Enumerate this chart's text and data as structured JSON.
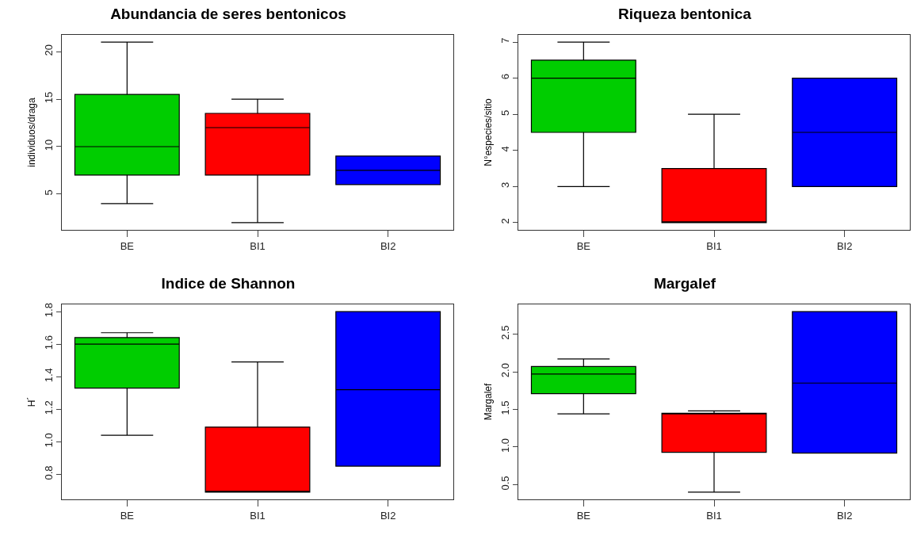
{
  "chart_data": [
    {
      "type": "box",
      "title": "Abundancia de seres bentonicos",
      "ylabel": "individuos/draga",
      "categories": [
        "BE",
        "BI1",
        "BI2"
      ],
      "colors": [
        "#00cd00",
        "#ff0000",
        "#0000ff"
      ],
      "ylim": [
        1.24,
        21.76
      ],
      "yticks": [
        5,
        10,
        15,
        20
      ],
      "boxes": [
        {
          "low": 4,
          "q1": 7,
          "median": 10,
          "q3": 15.5,
          "high": 21
        },
        {
          "low": 2,
          "q1": 7,
          "median": 12,
          "q3": 13.5,
          "high": 15
        },
        {
          "low": 6,
          "q1": 6,
          "median": 7.5,
          "q3": 9,
          "high": 9
        }
      ]
    },
    {
      "type": "box",
      "title": "Riqueza bentonica",
      "ylabel": "N°especies/sitio",
      "categories": [
        "BE",
        "BI1",
        "BI2"
      ],
      "colors": [
        "#00cd00",
        "#ff0000",
        "#0000ff"
      ],
      "ylim": [
        1.8,
        7.2
      ],
      "yticks": [
        2,
        3,
        4,
        5,
        6,
        7
      ],
      "boxes": [
        {
          "low": 3,
          "q1": 4.5,
          "median": 6,
          "q3": 6.5,
          "high": 7
        },
        {
          "low": 2,
          "q1": 2,
          "median": 2,
          "q3": 3.5,
          "high": 5
        },
        {
          "low": 3,
          "q1": 3,
          "median": 4.5,
          "q3": 6,
          "high": 6
        }
      ]
    },
    {
      "type": "box",
      "title": "Indice de Shannon",
      "ylabel": "H´",
      "categories": [
        "BE",
        "BI1",
        "BI2"
      ],
      "colors": [
        "#00cd00",
        "#ff0000",
        "#0000ff"
      ],
      "ylim": [
        0.646,
        1.844
      ],
      "yticks": [
        {
          "value": 0.8,
          "label": "0.8"
        },
        {
          "value": 1,
          "label": "1.0"
        },
        {
          "value": 1.2,
          "label": "1.2"
        },
        {
          "value": 1.4,
          "label": "1.4"
        },
        {
          "value": 1.6,
          "label": "1.6"
        },
        {
          "value": 1.8,
          "label": "1.8"
        }
      ],
      "boxes": [
        {
          "low": 1.04,
          "q1": 1.33,
          "median": 1.6,
          "q3": 1.64,
          "high": 1.67
        },
        {
          "low": 0.69,
          "q1": 0.69,
          "median": 0.69,
          "q3": 1.09,
          "high": 1.49
        },
        {
          "low": 0.85,
          "q1": 0.85,
          "median": 1.32,
          "q3": 1.8,
          "high": 1.8
        }
      ]
    },
    {
      "type": "box",
      "title": "Margalef",
      "ylabel": "Margalef",
      "categories": [
        "BE",
        "BI1",
        "BI2"
      ],
      "colors": [
        "#00cd00",
        "#ff0000",
        "#0000ff"
      ],
      "ylim": [
        0.304,
        2.896
      ],
      "yticks": [
        {
          "value": 0.5,
          "label": "0.5"
        },
        {
          "value": 1,
          "label": "1.0"
        },
        {
          "value": 1.5,
          "label": "1.5"
        },
        {
          "value": 2,
          "label": "2.0"
        },
        {
          "value": 2.5,
          "label": "2.5"
        }
      ],
      "boxes": [
        {
          "low": 1.44,
          "q1": 1.71,
          "median": 1.97,
          "q3": 2.07,
          "high": 2.17
        },
        {
          "low": 0.4,
          "q1": 0.93,
          "median": 1.44,
          "q3": 1.45,
          "high": 1.48
        },
        {
          "low": 0.92,
          "q1": 0.92,
          "median": 1.85,
          "q3": 2.8,
          "high": 2.8
        }
      ]
    }
  ]
}
